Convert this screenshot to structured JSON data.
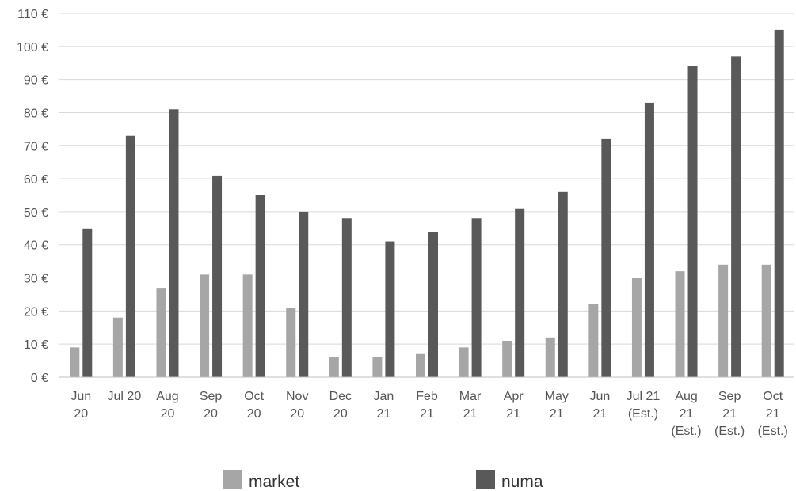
{
  "chart_data": {
    "type": "bar",
    "categories": [
      [
        "Jun",
        "20"
      ],
      [
        "Jul 20"
      ],
      [
        "Aug",
        "20"
      ],
      [
        "Sep",
        "20"
      ],
      [
        "Oct",
        "20"
      ],
      [
        "Nov",
        "20"
      ],
      [
        "Dec",
        "20"
      ],
      [
        "Jan",
        "21"
      ],
      [
        "Feb",
        "21"
      ],
      [
        "Mar",
        "21"
      ],
      [
        "Apr",
        "21"
      ],
      [
        "May",
        "21"
      ],
      [
        "Jun",
        "21"
      ],
      [
        "Jul 21",
        "(Est.)"
      ],
      [
        "Aug",
        "21",
        "(Est.)"
      ],
      [
        "Sep",
        "21",
        "(Est.)"
      ],
      [
        "Oct",
        "21",
        "(Est.)"
      ]
    ],
    "series": [
      {
        "name": "market",
        "color": "#a6a6a6",
        "values": [
          9,
          18,
          27,
          31,
          31,
          21,
          6,
          6,
          7,
          9,
          11,
          12,
          22,
          30,
          32,
          34,
          34
        ]
      },
      {
        "name": "numa",
        "color": "#595959",
        "values": [
          45,
          73,
          81,
          61,
          55,
          50,
          48,
          41,
          44,
          48,
          51,
          56,
          72,
          83,
          94,
          97,
          105
        ]
      }
    ],
    "yticks": [
      "0 €",
      "10 €",
      "20 €",
      "30 €",
      "40 €",
      "50 €",
      "60 €",
      "70 €",
      "80 €",
      "90 €",
      "100 €",
      "110 €"
    ],
    "ylim": [
      0,
      110
    ],
    "grid": true,
    "legend_position": "bottom",
    "title": "",
    "xlabel": "",
    "ylabel": ""
  }
}
